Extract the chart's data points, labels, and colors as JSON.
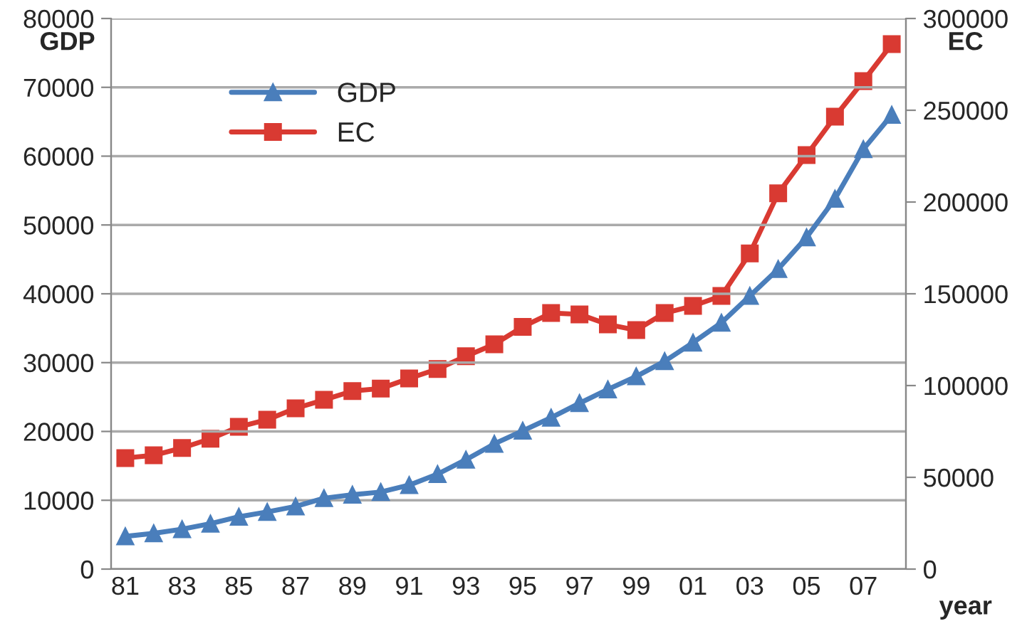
{
  "chart_data": {
    "type": "line",
    "xlabel": "year",
    "ylabel": "GDP",
    "y2label": "EC",
    "categories": [
      "81",
      null,
      "83",
      null,
      "85",
      null,
      "87",
      null,
      "89",
      null,
      "91",
      null,
      "93",
      null,
      "95",
      null,
      "97",
      null,
      "99",
      null,
      "01",
      null,
      "03",
      null,
      "05",
      null,
      "07",
      null
    ],
    "series": [
      {
        "name": "GDP",
        "color": "#4a7ebb",
        "marker": "triangle",
        "values": [
          4750,
          5200,
          5800,
          6600,
          7600,
          8300,
          9100,
          10300,
          10800,
          11200,
          12200,
          13800,
          15900,
          18200,
          20100,
          22000,
          24100,
          26100,
          28000,
          30200,
          32900,
          35800,
          39700,
          43600,
          48200,
          53800,
          61000,
          66000
        ]
      },
      {
        "name": "EC",
        "color": "#d93a32",
        "marker": "square",
        "axis": "y2",
        "values": [
          60500,
          62000,
          66000,
          71000,
          77500,
          81400,
          87600,
          92200,
          97000,
          98400,
          103900,
          109000,
          116000,
          122500,
          132000,
          139500,
          138800,
          133300,
          130200,
          139500,
          143400,
          148800,
          172000,
          204700,
          225600,
          246500,
          265900,
          286000
        ]
      }
    ],
    "ylim": [
      0,
      80000
    ],
    "yticks": [
      0,
      10000,
      20000,
      30000,
      40000,
      50000,
      60000,
      70000,
      80000
    ],
    "y2lim": [
      0,
      300000
    ],
    "y2ticks": [
      0,
      50000,
      100000,
      150000,
      200000,
      250000,
      300000
    ],
    "grid": "y",
    "legend": "top left"
  }
}
